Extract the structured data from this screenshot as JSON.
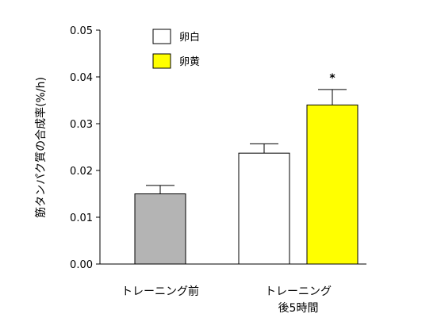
{
  "chart_data": {
    "type": "bar",
    "title": "",
    "ylabel": "筋タンパク質の合成率(%/h)",
    "xlabel": "",
    "ylim": [
      0,
      0.05
    ],
    "yticks": [
      "0.00",
      "0.01",
      "0.02",
      "0.03",
      "0.04",
      "0.05"
    ],
    "grid": false,
    "legend_position": "top-left",
    "groups": [
      {
        "label_lines": [
          "トレーニング前"
        ],
        "bars": [
          {
            "series": "baseline",
            "value": 0.015,
            "error": 0.0018
          }
        ]
      },
      {
        "label_lines": [
          "トレーニング",
          "後5時間"
        ],
        "bars": [
          {
            "series": "egg_white",
            "value": 0.0237,
            "error": 0.002
          },
          {
            "series": "egg_yolk",
            "value": 0.034,
            "error": 0.0033,
            "annotation": "*"
          }
        ]
      }
    ],
    "series": [
      {
        "key": "baseline",
        "name": "",
        "color": "#b4b4b4",
        "in_legend": false
      },
      {
        "key": "egg_white",
        "name": "卵白",
        "color": "#ffffff",
        "in_legend": true
      },
      {
        "key": "egg_yolk",
        "name": "卵黄",
        "color": "#ffff00",
        "in_legend": true
      }
    ]
  }
}
